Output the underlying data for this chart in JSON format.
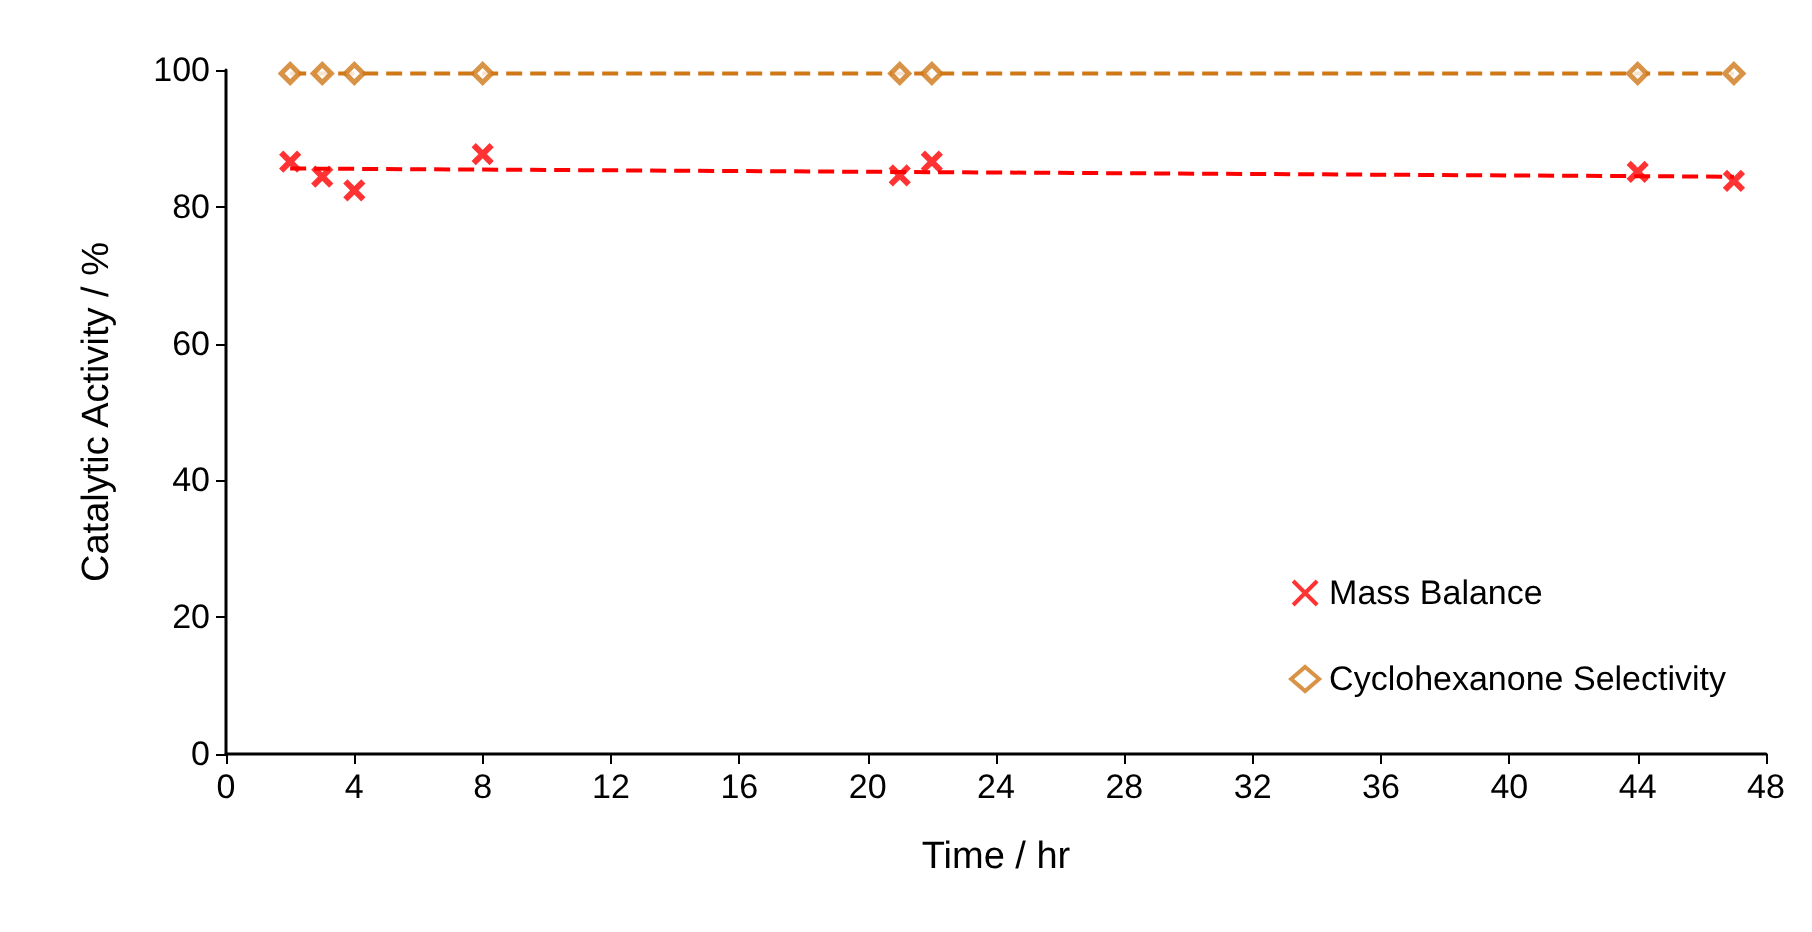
{
  "chart_data": {
    "type": "scatter",
    "xlabel": "Time / hr",
    "ylabel": "Catalytic Activity / %",
    "xlim": [
      0,
      48
    ],
    "xticks": [
      0,
      4,
      8,
      12,
      16,
      20,
      24,
      28,
      32,
      36,
      40,
      44,
      48
    ],
    "ylim": [
      0,
      100
    ],
    "yticks": [
      0,
      20,
      40,
      60,
      80,
      100
    ],
    "legend": "bottom right",
    "series": [
      {
        "name": "Mass Balance",
        "marker": "cross",
        "color": "#ff0000",
        "x": [
          2,
          3,
          4,
          8,
          21,
          22,
          44,
          47
        ],
        "values": [
          86.6,
          84.4,
          82.4,
          87.7,
          84.6,
          86.6,
          85.1,
          83.8
        ]
      },
      {
        "name": "Cyclohexanone Selectivity",
        "marker": "diamond",
        "color": "#d07818",
        "x": [
          2,
          3,
          4,
          8,
          21,
          22,
          44,
          47
        ],
        "values": [
          99.5,
          99.5,
          99.5,
          99.5,
          99.5,
          99.5,
          99.5,
          99.5
        ]
      },
      {
        "type": "line",
        "line_style": "dashed",
        "marker": "none",
        "color": "#ff0000",
        "x": [
          2,
          47
        ],
        "values": [
          85.6,
          84.4
        ]
      },
      {
        "type": "line",
        "line_style": "dashed",
        "marker": "none",
        "color": "#d07818",
        "x": [
          2,
          47
        ],
        "values": [
          99.5,
          99.5
        ]
      }
    ]
  }
}
